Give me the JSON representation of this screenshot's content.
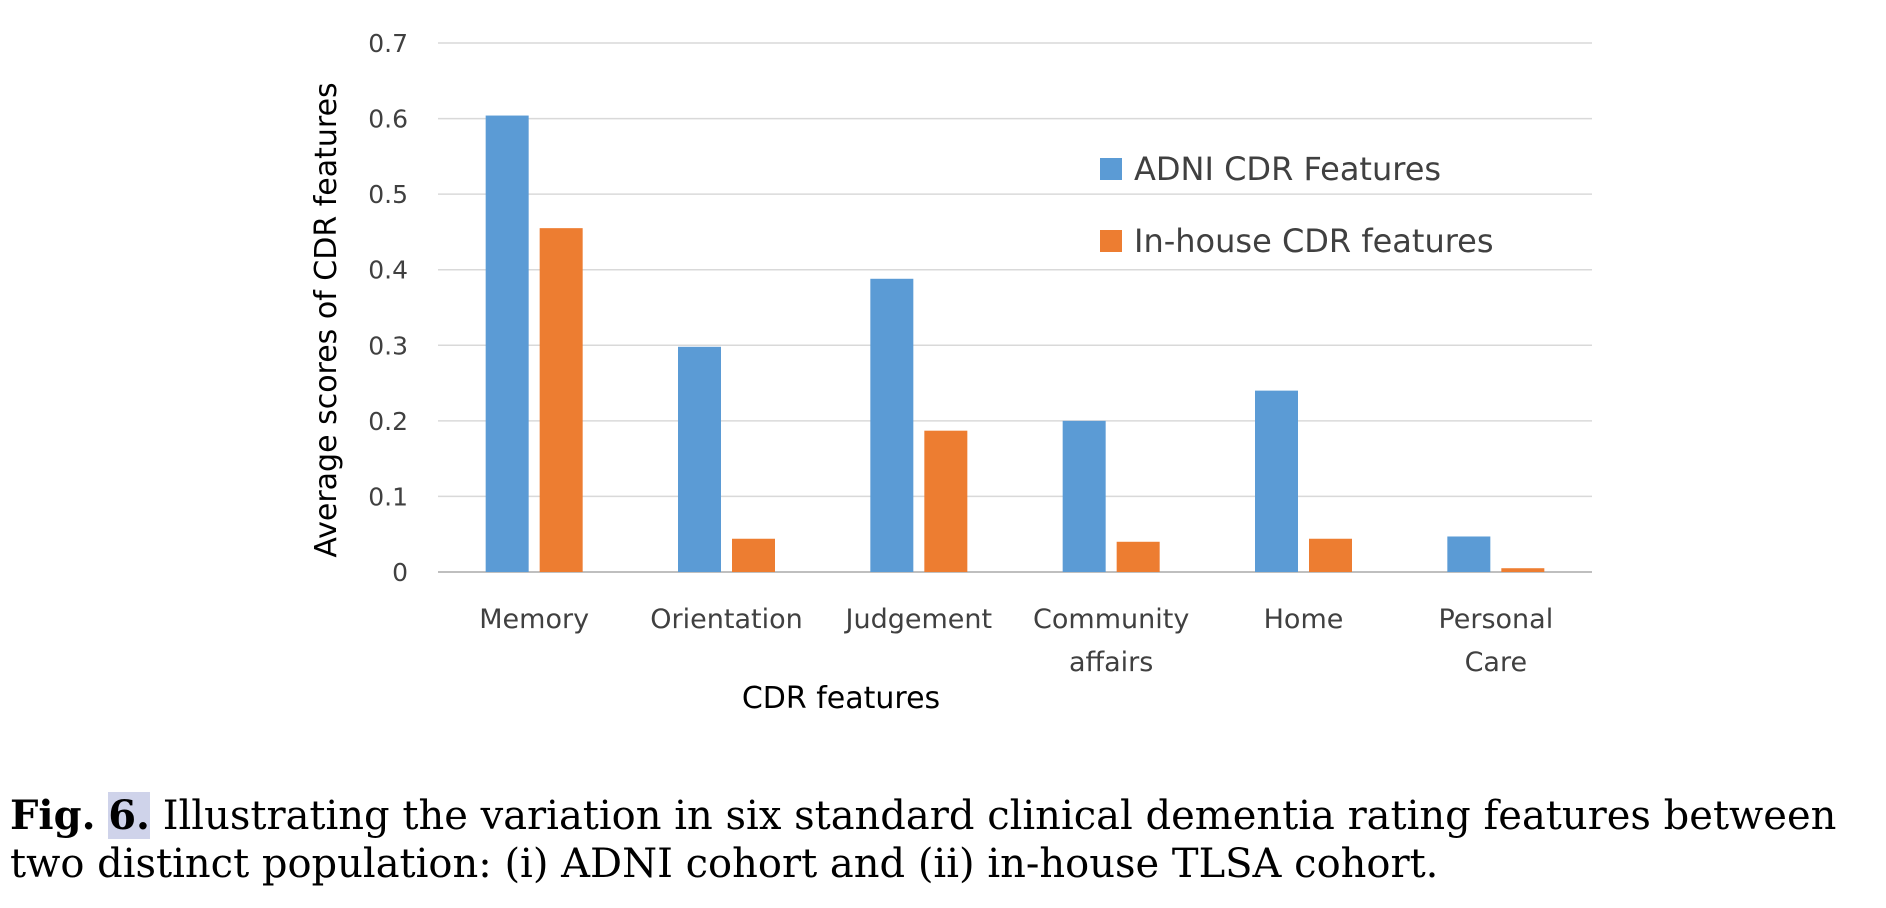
{
  "chart_data": {
    "type": "bar",
    "title": "",
    "xlabel": "CDR features",
    "ylabel": "Average scores of CDR features",
    "ylim": [
      0,
      0.7
    ],
    "yticks": [
      "0",
      "0.1",
      "0.2",
      "0.3",
      "0.4",
      "0.5",
      "0.6",
      "0.7"
    ],
    "grid": true,
    "legend_position": "top-right",
    "categories": [
      [
        "Memory"
      ],
      [
        "Orientation"
      ],
      [
        "Judgement"
      ],
      [
        "Community",
        "affairs"
      ],
      [
        "Home"
      ],
      [
        "Personal",
        "Care"
      ]
    ],
    "series": [
      {
        "name": "ADNI CDR Features",
        "color": "#5B9BD5",
        "values": [
          0.604,
          0.298,
          0.388,
          0.2,
          0.24,
          0.047
        ]
      },
      {
        "name": "In-house CDR features",
        "color": "#ED7D31",
        "values": [
          0.455,
          0.044,
          0.187,
          0.04,
          0.044,
          0.005
        ]
      }
    ]
  },
  "caption": {
    "label": "Fig.",
    "number": "6.",
    "text": " Illustrating the variation in six standard clinical dementia rating features between two distinct population: (i) ADNI cohort and (ii) in-house TLSA cohort."
  }
}
